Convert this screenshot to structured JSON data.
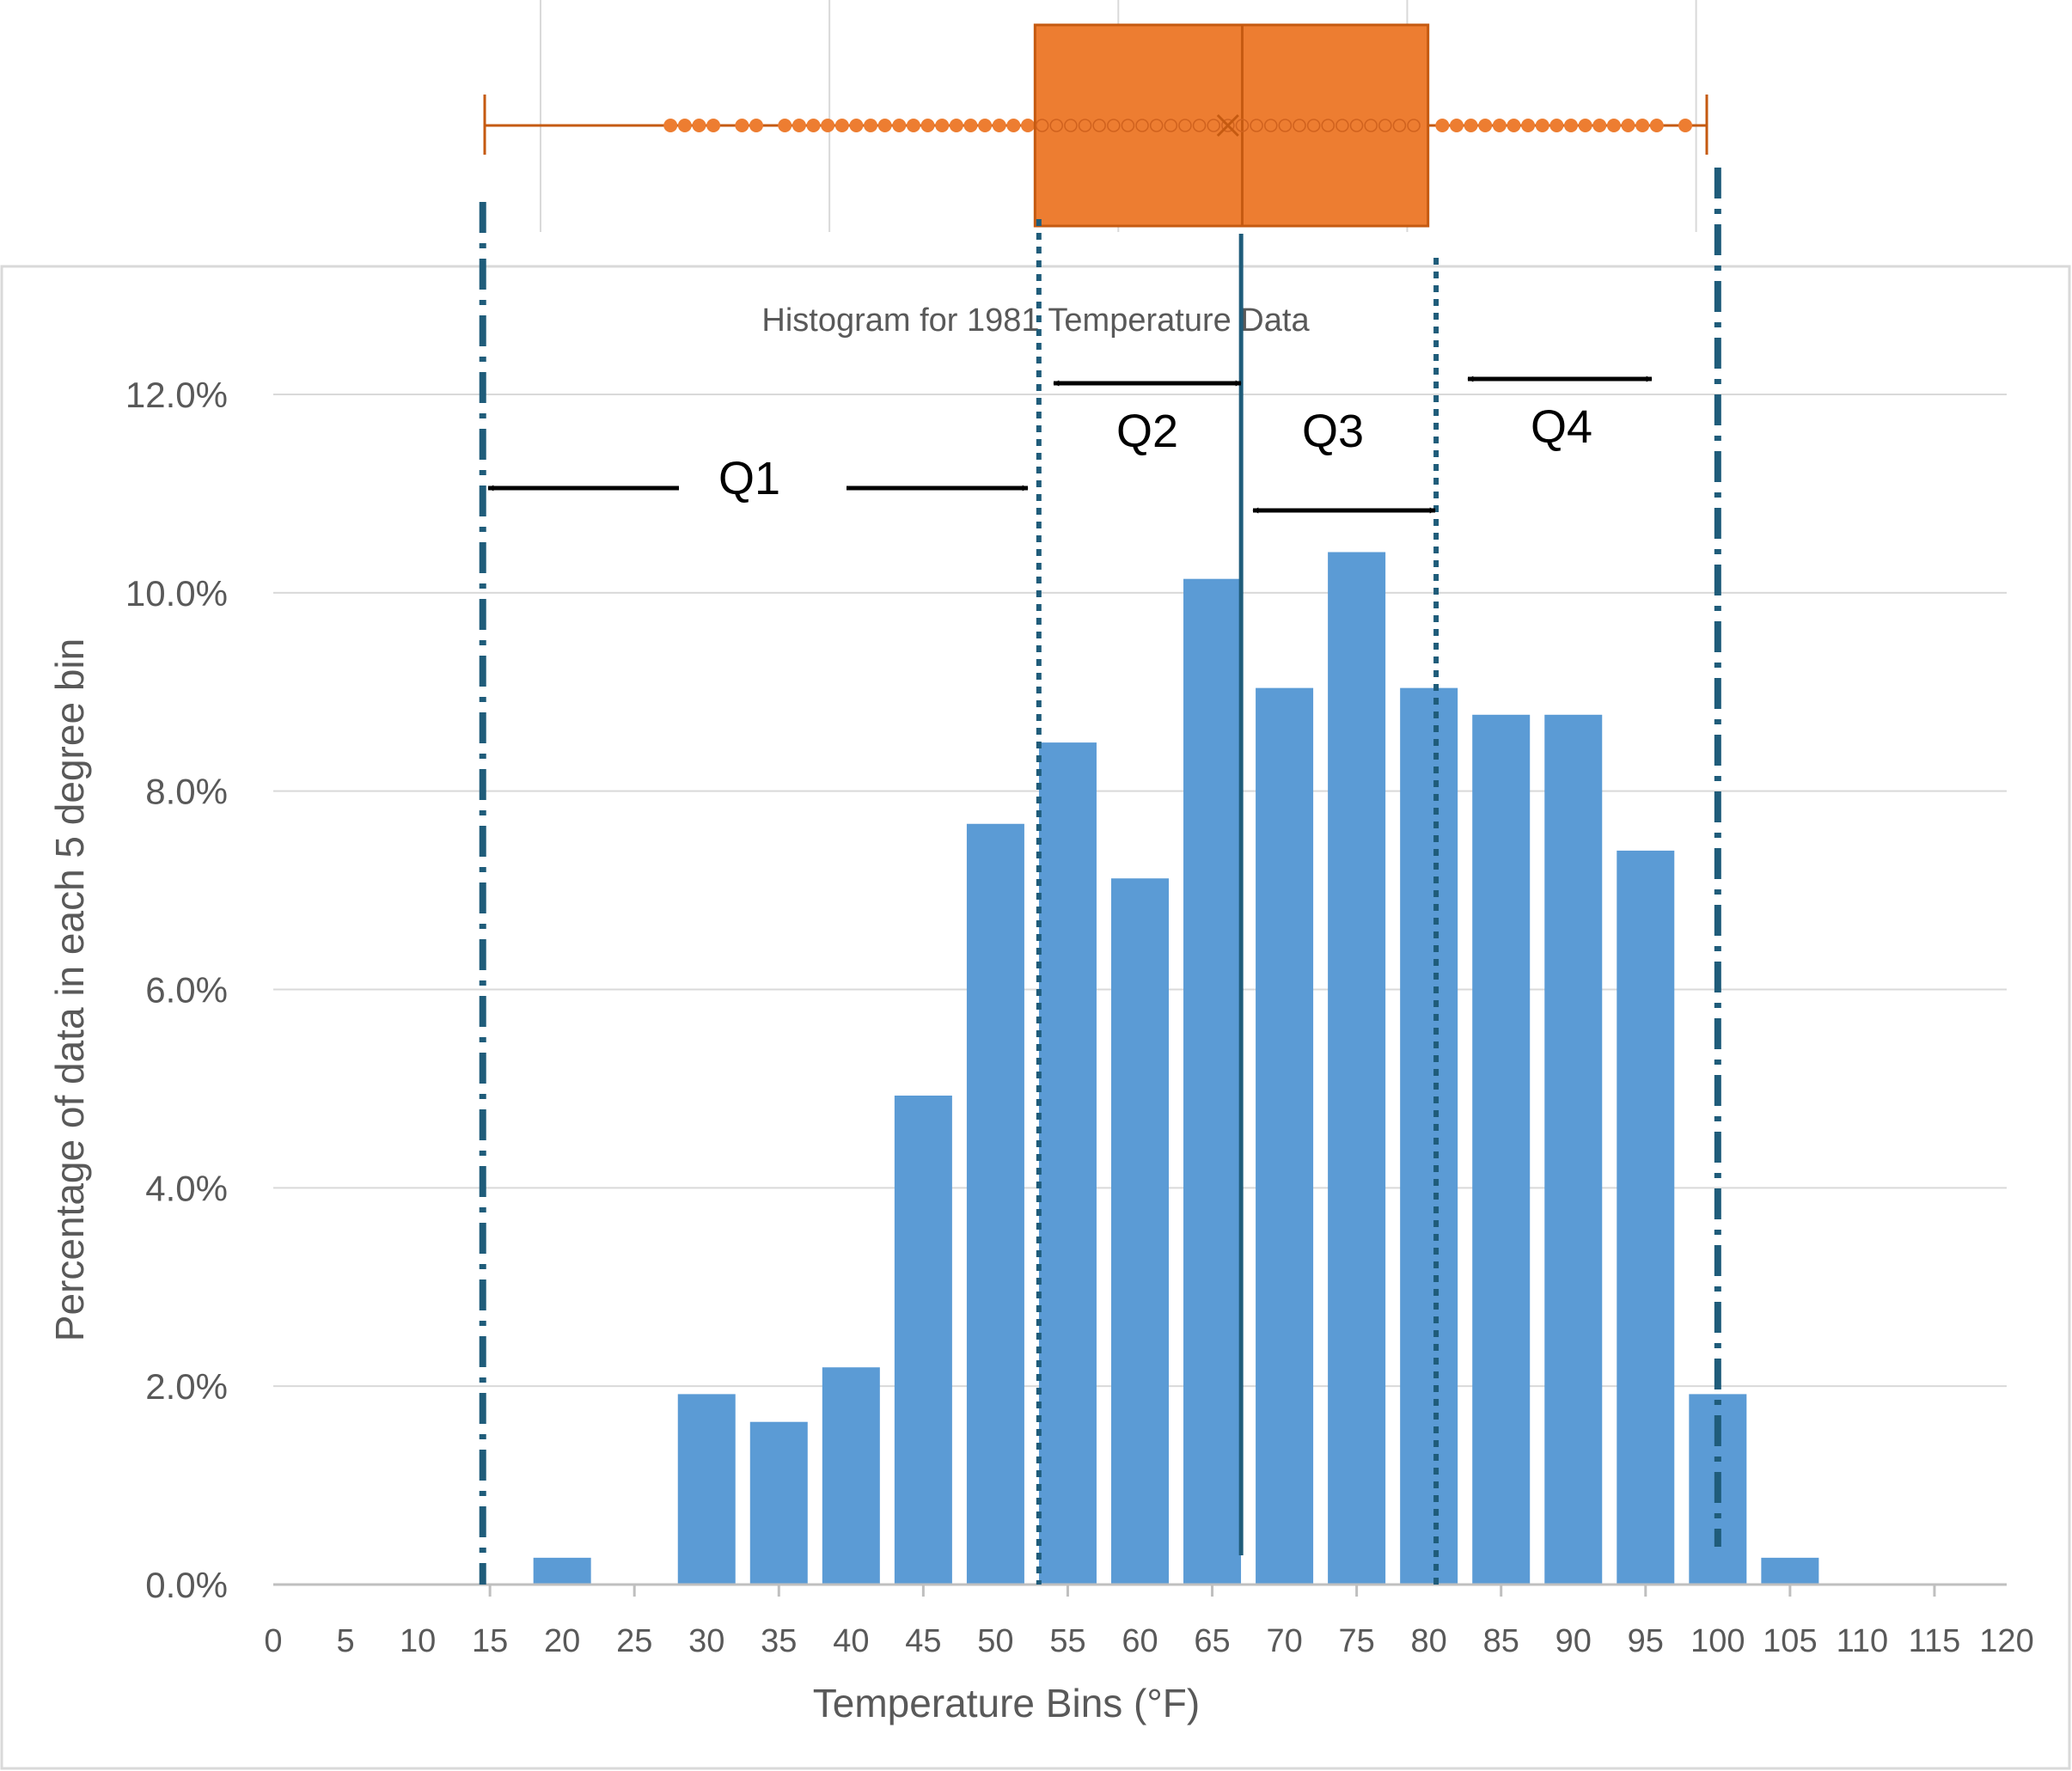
{
  "chart_data": [
    {
      "type": "bar",
      "title": "Histogram for 1981 Temperature Data",
      "xlabel": "Temperature Bins (°F)",
      "ylabel": "Percentage of data in each 5 degree bin",
      "categories": [
        "0",
        "5",
        "10",
        "15",
        "20",
        "25",
        "30",
        "35",
        "40",
        "45",
        "50",
        "55",
        "60",
        "65",
        "70",
        "75",
        "80",
        "85",
        "90",
        "95",
        "100",
        "105",
        "110",
        "115",
        "120"
      ],
      "bins": [
        {
          "x": 20,
          "value": 0.27
        },
        {
          "x": 30,
          "value": 1.92
        },
        {
          "x": 35,
          "value": 1.64
        },
        {
          "x": 40,
          "value": 2.19
        },
        {
          "x": 45,
          "value": 4.93
        },
        {
          "x": 50,
          "value": 7.67
        },
        {
          "x": 55,
          "value": 8.49
        },
        {
          "x": 60,
          "value": 7.12
        },
        {
          "x": 65,
          "value": 10.14
        },
        {
          "x": 70,
          "value": 9.04
        },
        {
          "x": 75,
          "value": 10.41
        },
        {
          "x": 80,
          "value": 9.04
        },
        {
          "x": 85,
          "value": 8.77
        },
        {
          "x": 90,
          "value": 8.77
        },
        {
          "x": 95,
          "value": 7.4
        },
        {
          "x": 100,
          "value": 1.92
        },
        {
          "x": 105,
          "value": 0.27
        }
      ],
      "yticks": [
        "0.0%",
        "2.0%",
        "4.0%",
        "6.0%",
        "8.0%",
        "10.0%",
        "12.0%"
      ],
      "ylim": [
        0,
        12.5
      ],
      "xlim": [
        0,
        120
      ],
      "grid": "horizontal",
      "bar_color": "#5B9BD5",
      "quartile_lines": {
        "minimum": 14.5,
        "q1": 53,
        "median": 67,
        "q3": 80.5,
        "maximum": 100,
        "line_color": "#1F5C7A"
      },
      "annotations": [
        "Q1",
        "Q2",
        "Q3",
        "Q4"
      ]
    },
    {
      "type": "box",
      "orientation": "horizontal",
      "min": 14,
      "q1": 52.5,
      "median": 67,
      "mean": 66,
      "q3": 80,
      "max": 99.5,
      "color": "#ED7D31",
      "points_below_box": [
        27,
        28,
        29,
        30,
        32,
        33,
        35,
        36,
        37,
        38,
        39,
        40,
        41,
        42,
        43,
        44,
        45,
        46,
        47,
        48,
        49,
        50,
        51,
        52
      ],
      "points_above_box": [
        81,
        82,
        83,
        84,
        85,
        86,
        87,
        88,
        89,
        90,
        91,
        92,
        93,
        94,
        95,
        96,
        98
      ]
    }
  ]
}
